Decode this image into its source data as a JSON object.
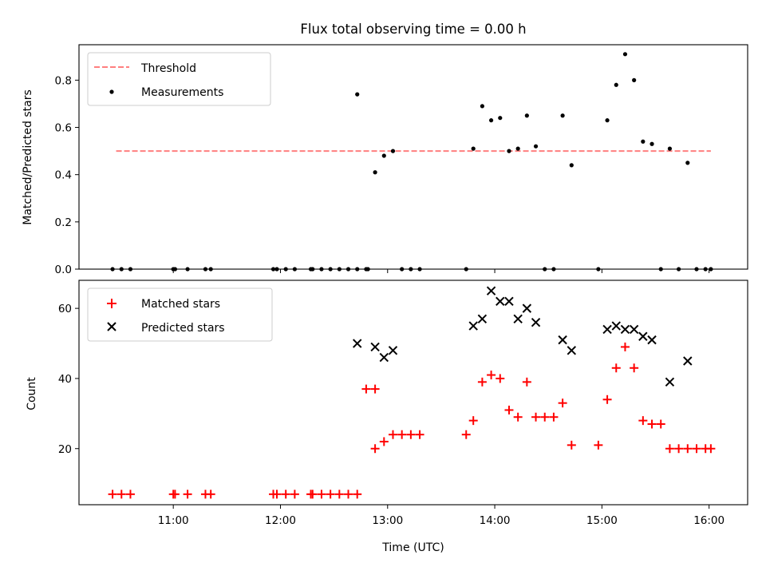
{
  "chart_data": [
    {
      "type": "scatter",
      "title": "Flux total observing time = 0.00 h",
      "xlabel": "",
      "ylabel": "Matched/Predicted stars",
      "ylim": [
        0,
        0.95
      ],
      "yticks": [
        0.0,
        0.2,
        0.4,
        0.6,
        0.8
      ],
      "ytick_labels": [
        "0.0",
        "0.2",
        "0.4",
        "0.6",
        "0.8"
      ],
      "legend_position": "top-left",
      "threshold": {
        "name": "Threshold",
        "y": 0.5,
        "x_start": "10:28",
        "x_end": "16:01",
        "color": "#ff7f7f"
      },
      "series": [
        {
          "name": "Measurements",
          "marker": "dot",
          "color": "#000000",
          "points": [
            [
              "10:26",
              0
            ],
            [
              "10:31",
              0
            ],
            [
              "10:36",
              0
            ],
            [
              "11:00",
              0
            ],
            [
              "11:01",
              0
            ],
            [
              "11:08",
              0
            ],
            [
              "11:18",
              0
            ],
            [
              "11:21",
              0
            ],
            [
              "11:56",
              0
            ],
            [
              "11:58",
              0
            ],
            [
              "12:03",
              0
            ],
            [
              "12:08",
              0
            ],
            [
              "12:17",
              0
            ],
            [
              "12:18",
              0
            ],
            [
              "12:23",
              0
            ],
            [
              "12:28",
              0
            ],
            [
              "12:33",
              0
            ],
            [
              "12:38",
              0
            ],
            [
              "12:43",
              0
            ],
            [
              "12:48",
              0
            ],
            [
              "12:43",
              0.74
            ],
            [
              "12:53",
              0.41
            ],
            [
              "12:58",
              0.48
            ],
            [
              "13:03",
              0.5
            ],
            [
              "12:49",
              0
            ],
            [
              "13:08",
              0
            ],
            [
              "13:13",
              0
            ],
            [
              "13:18",
              0
            ],
            [
              "13:44",
              0
            ],
            [
              "13:48",
              0.51
            ],
            [
              "13:53",
              0.69
            ],
            [
              "13:58",
              0.63
            ],
            [
              "14:03",
              0.64
            ],
            [
              "14:08",
              0.5
            ],
            [
              "14:13",
              0.51
            ],
            [
              "14:18",
              0.65
            ],
            [
              "14:23",
              0.52
            ],
            [
              "14:28",
              0
            ],
            [
              "14:33",
              0
            ],
            [
              "14:38",
              0.65
            ],
            [
              "14:43",
              0.44
            ],
            [
              "14:58",
              0
            ],
            [
              "15:03",
              0.63
            ],
            [
              "15:08",
              0.78
            ],
            [
              "15:13",
              0.91
            ],
            [
              "15:18",
              0.8
            ],
            [
              "15:23",
              0.54
            ],
            [
              "15:28",
              0.53
            ],
            [
              "15:33",
              0
            ],
            [
              "15:38",
              0.51
            ],
            [
              "15:43",
              0
            ],
            [
              "15:48",
              0.45
            ],
            [
              "15:53",
              0
            ],
            [
              "15:58",
              0
            ],
            [
              "16:01",
              0
            ]
          ]
        }
      ]
    },
    {
      "type": "scatter",
      "title": "",
      "xlabel": "Time (UTC)",
      "ylabel": "Count",
      "ylim": [
        4,
        68
      ],
      "yticks": [
        20,
        40,
        60
      ],
      "ytick_labels": [
        "20",
        "40",
        "60"
      ],
      "xticks": [
        "11:00",
        "12:00",
        "13:00",
        "14:00",
        "15:00",
        "16:00"
      ],
      "legend_position": "top-left",
      "series": [
        {
          "name": "Matched stars",
          "marker": "plus",
          "color": "#ff0000",
          "points": [
            [
              "10:26",
              7
            ],
            [
              "10:31",
              7
            ],
            [
              "10:36",
              7
            ],
            [
              "11:00",
              7
            ],
            [
              "11:01",
              7
            ],
            [
              "11:08",
              7
            ],
            [
              "11:18",
              7
            ],
            [
              "11:21",
              7
            ],
            [
              "11:56",
              7
            ],
            [
              "11:58",
              7
            ],
            [
              "12:03",
              7
            ],
            [
              "12:08",
              7
            ],
            [
              "12:17",
              7
            ],
            [
              "12:18",
              7
            ],
            [
              "12:23",
              7
            ],
            [
              "12:28",
              7
            ],
            [
              "12:33",
              7
            ],
            [
              "12:38",
              7
            ],
            [
              "12:43",
              7
            ],
            [
              "12:48",
              37
            ],
            [
              "12:53",
              37
            ],
            [
              "12:53",
              20
            ],
            [
              "12:58",
              22
            ],
            [
              "13:03",
              24
            ],
            [
              "13:08",
              24
            ],
            [
              "13:13",
              24
            ],
            [
              "13:18",
              24
            ],
            [
              "13:44",
              24
            ],
            [
              "13:48",
              28
            ],
            [
              "13:53",
              39
            ],
            [
              "13:58",
              41
            ],
            [
              "14:03",
              40
            ],
            [
              "14:08",
              31
            ],
            [
              "14:13",
              29
            ],
            [
              "14:18",
              39
            ],
            [
              "14:23",
              29
            ],
            [
              "14:28",
              29
            ],
            [
              "14:33",
              29
            ],
            [
              "14:38",
              33
            ],
            [
              "14:43",
              21
            ],
            [
              "14:58",
              21
            ],
            [
              "15:03",
              34
            ],
            [
              "15:08",
              43
            ],
            [
              "15:13",
              49
            ],
            [
              "15:18",
              43
            ],
            [
              "15:23",
              28
            ],
            [
              "15:28",
              27
            ],
            [
              "15:33",
              27
            ],
            [
              "15:38",
              20
            ],
            [
              "15:43",
              20
            ],
            [
              "15:48",
              20
            ],
            [
              "15:53",
              20
            ],
            [
              "15:58",
              20
            ],
            [
              "16:01",
              20
            ]
          ]
        },
        {
          "name": "Predicted stars",
          "marker": "x",
          "color": "#000000",
          "points": [
            [
              "12:43",
              50
            ],
            [
              "12:53",
              49
            ],
            [
              "12:58",
              46
            ],
            [
              "13:03",
              48
            ],
            [
              "13:48",
              55
            ],
            [
              "13:53",
              57
            ],
            [
              "13:58",
              65
            ],
            [
              "14:03",
              62
            ],
            [
              "14:08",
              62
            ],
            [
              "14:13",
              57
            ],
            [
              "14:18",
              60
            ],
            [
              "14:23",
              56
            ],
            [
              "14:38",
              51
            ],
            [
              "14:43",
              48
            ],
            [
              "15:03",
              54
            ],
            [
              "15:08",
              55
            ],
            [
              "15:13",
              54
            ],
            [
              "15:18",
              54
            ],
            [
              "15:23",
              52
            ],
            [
              "15:28",
              51
            ],
            [
              "15:38",
              39
            ],
            [
              "15:48",
              45
            ]
          ]
        }
      ]
    }
  ]
}
